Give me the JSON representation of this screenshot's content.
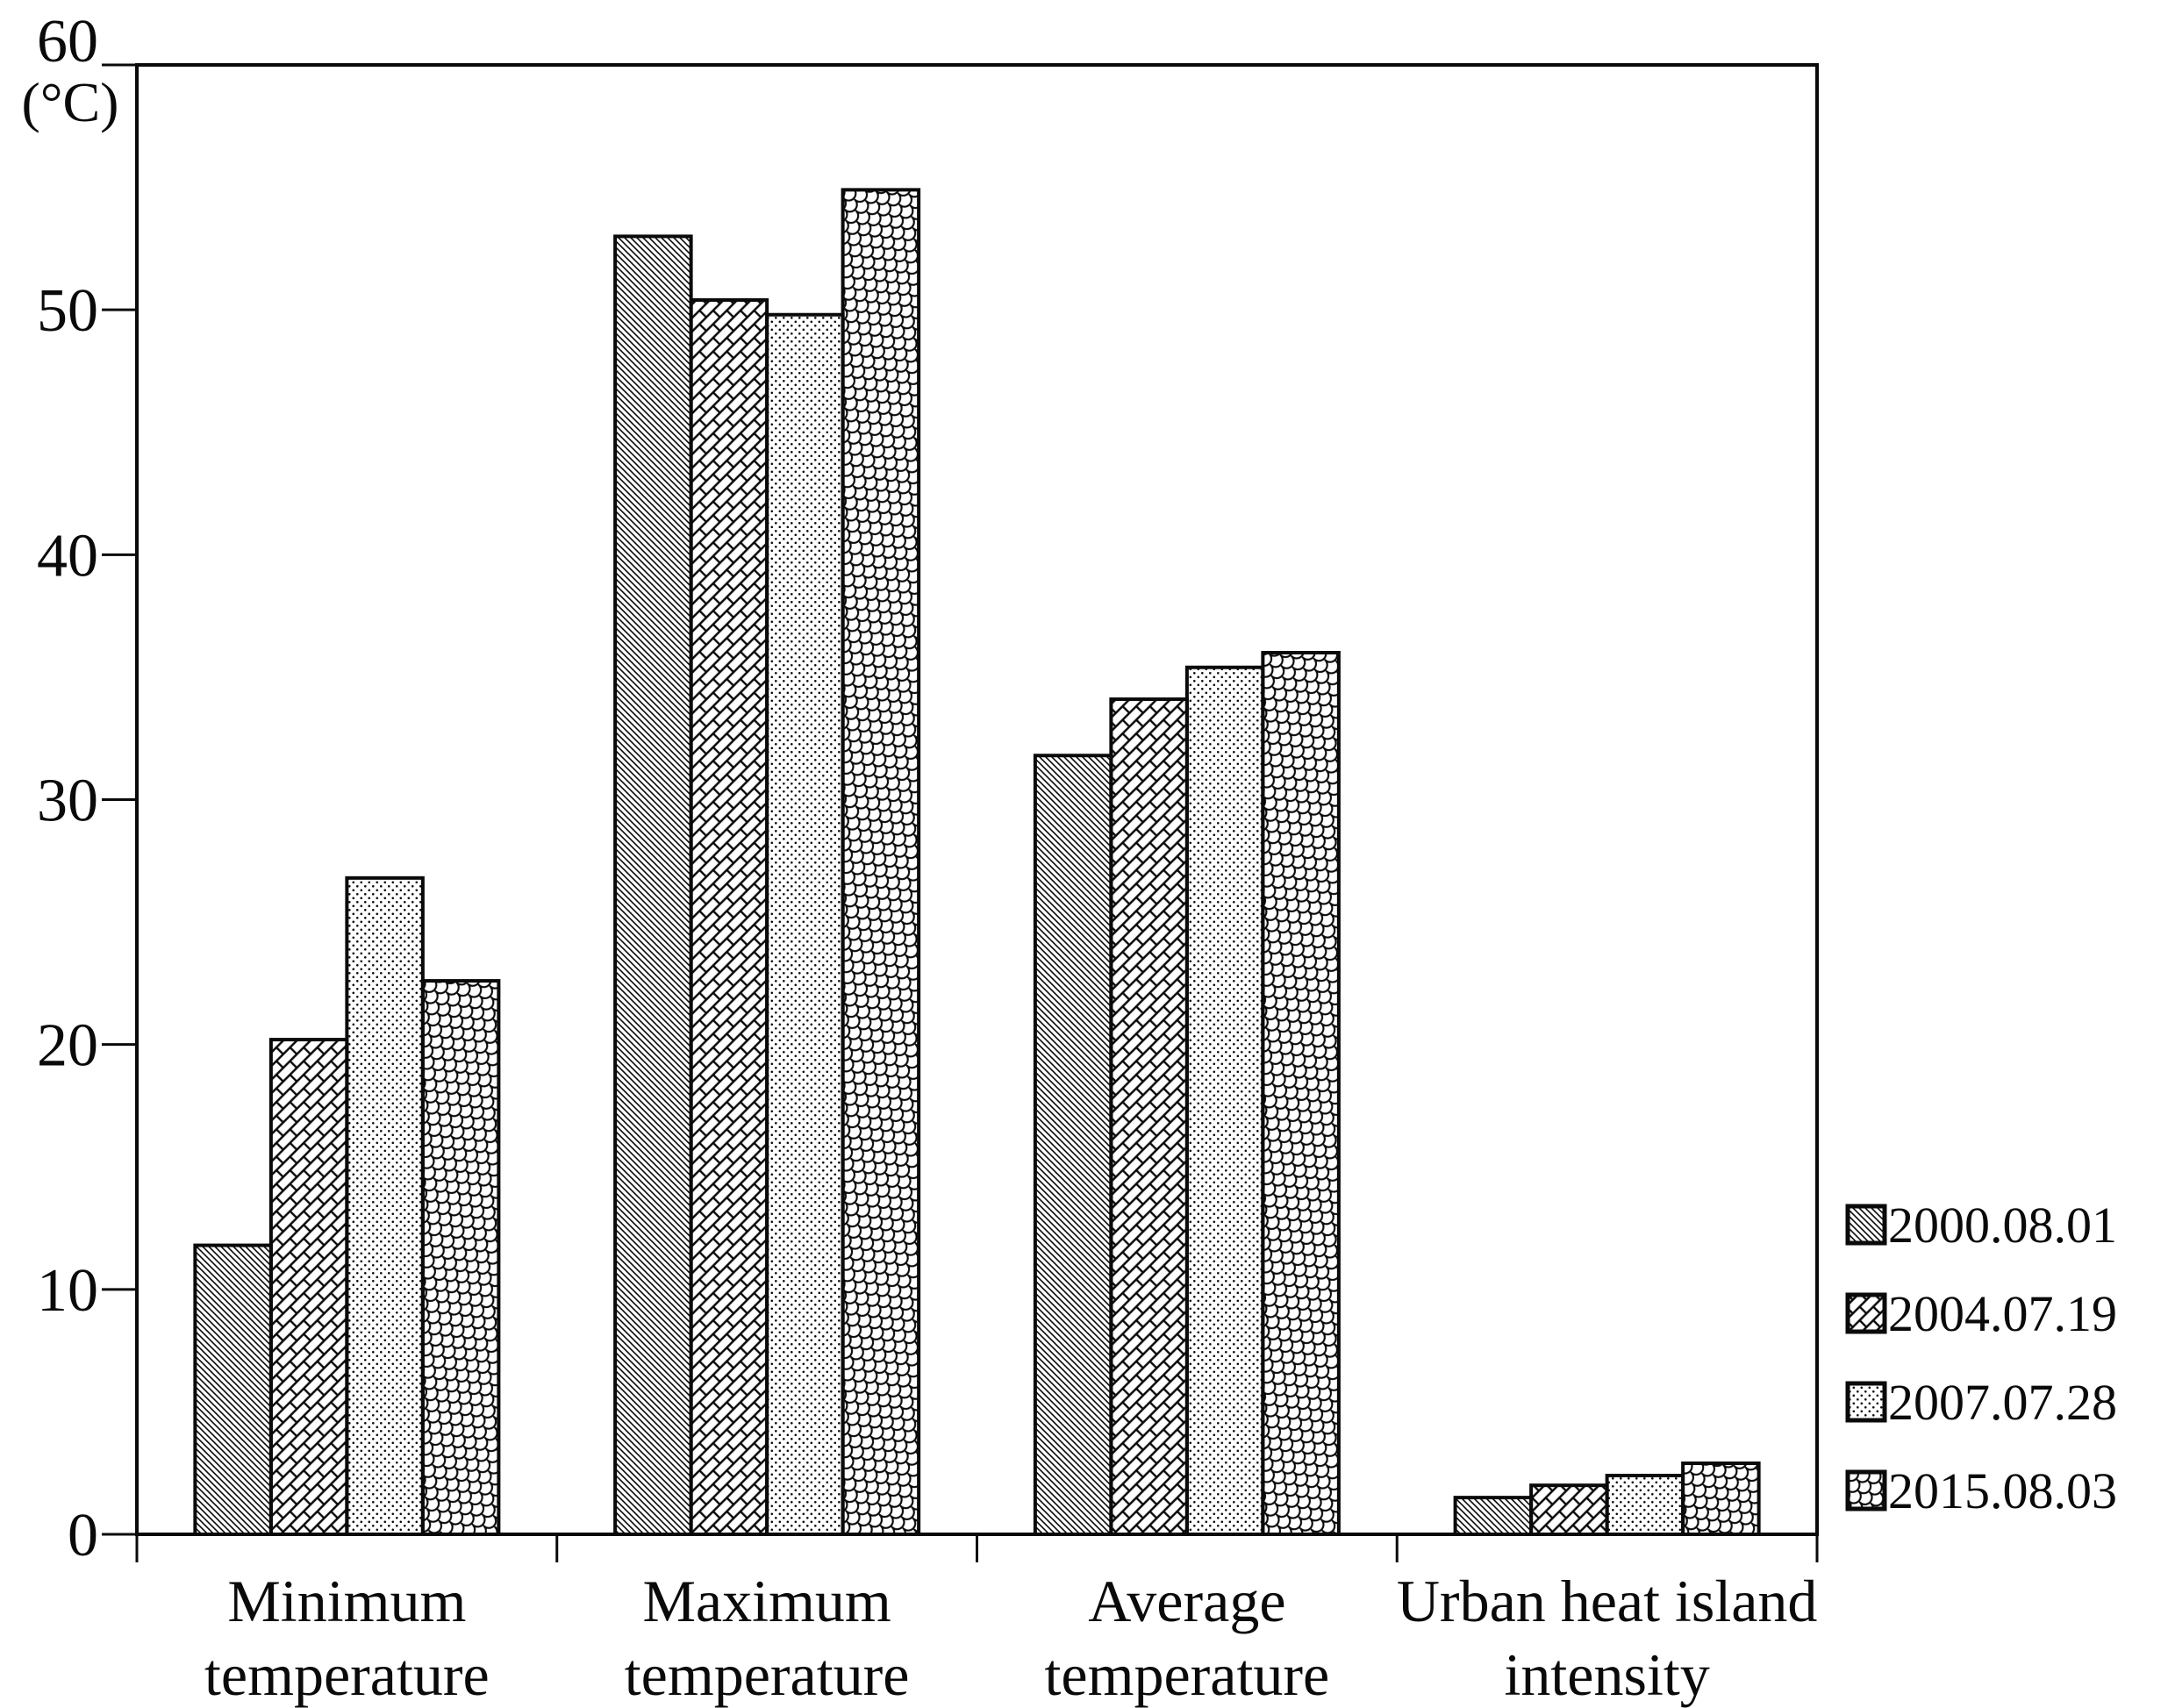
{
  "chart_data": {
    "type": "bar",
    "title": "",
    "unit_label": "(°C)",
    "ylim": [
      0,
      60
    ],
    "ytick_step": 10,
    "yticks": [
      0,
      10,
      20,
      30,
      40,
      50,
      60
    ],
    "grid": false,
    "legend_position": "right",
    "categories": [
      {
        "id": "minimum-temperature",
        "label_lines": [
          "Minimum",
          "temperature"
        ]
      },
      {
        "id": "maximum-temperature",
        "label_lines": [
          "Maximum",
          "temperature"
        ]
      },
      {
        "id": "average-temperature",
        "label_lines": [
          "Average",
          "temperature"
        ]
      },
      {
        "id": "urban-heat-island-intensity",
        "label_lines": [
          "Urban heat island",
          "intensity"
        ]
      }
    ],
    "series": [
      {
        "name": "2000.08.01",
        "pattern": "diagonal-lines",
        "values": [
          11.8,
          53.0,
          31.8,
          1.5
        ]
      },
      {
        "name": "2004.07.19",
        "pattern": "diagonal-brick",
        "values": [
          20.2,
          50.4,
          34.1,
          2.0
        ]
      },
      {
        "name": "2007.07.28",
        "pattern": "dot-grid",
        "values": [
          26.8,
          49.8,
          35.4,
          2.4
        ]
      },
      {
        "name": "2015.08.03",
        "pattern": "shingle",
        "values": [
          22.6,
          54.9,
          36.0,
          2.9
        ]
      }
    ],
    "colors": {
      "ink": "#0a0a0a",
      "background": "#ffffff"
    }
  }
}
